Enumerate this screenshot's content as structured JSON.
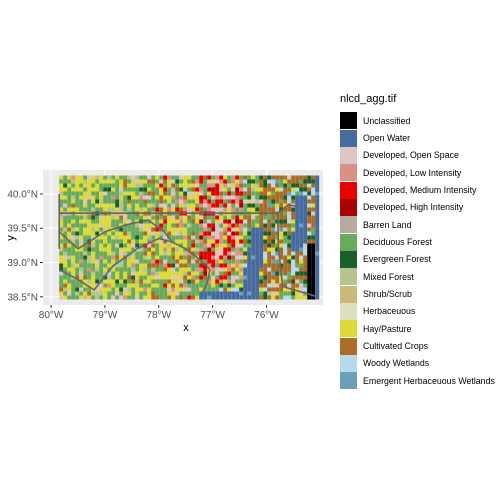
{
  "map": {
    "legend_title": "nlcd_agg.tif",
    "x_axis_title": "x",
    "y_axis_title": "y",
    "x_ticks": [
      {
        "value": -80,
        "label": "80°W"
      },
      {
        "value": -79,
        "label": "79°W"
      },
      {
        "value": -78,
        "label": "78°W"
      },
      {
        "value": -77,
        "label": "77°W"
      },
      {
        "value": -76,
        "label": "76°W"
      }
    ],
    "y_ticks": [
      {
        "value": 38.5,
        "label": "38.5°N"
      },
      {
        "value": 39.0,
        "label": "39.0°N"
      },
      {
        "value": 39.5,
        "label": "39.5°N"
      },
      {
        "value": 40.0,
        "label": "40.0°N"
      }
    ],
    "x_range": [
      -80.15,
      -74.95
    ],
    "y_range": [
      38.38,
      40.35
    ],
    "classes": [
      {
        "label": "Unclassified",
        "color": "#000000"
      },
      {
        "label": "Open Water",
        "color": "#466b9f"
      },
      {
        "label": "Developed, Open Space",
        "color": "#dec5c5"
      },
      {
        "label": "Developed, Low Intensity",
        "color": "#d99282"
      },
      {
        "label": "Developed, Medium Intensity",
        "color": "#eb0000"
      },
      {
        "label": "Developed, High Intensity",
        "color": "#ab0000"
      },
      {
        "label": "Barren Land",
        "color": "#b3ac9f"
      },
      {
        "label": "Deciduous Forest",
        "color": "#68ab5f"
      },
      {
        "label": "Evergreen Forest",
        "color": "#1c5f2c"
      },
      {
        "label": "Mixed Forest",
        "color": "#b5c58f"
      },
      {
        "label": "Shrub/Scrub",
        "color": "#ccb879"
      },
      {
        "label": "Herbaceuous",
        "color": "#dfdfc2"
      },
      {
        "label": "Hay/Pasture",
        "color": "#dcd939"
      },
      {
        "label": "Cultivated Crops",
        "color": "#ab6c28"
      },
      {
        "label": "Woody Wetlands",
        "color": "#b8d9eb"
      },
      {
        "label": "Emergent Herbaceuous Wetlands",
        "color": "#6c9fb8"
      }
    ]
  }
}
